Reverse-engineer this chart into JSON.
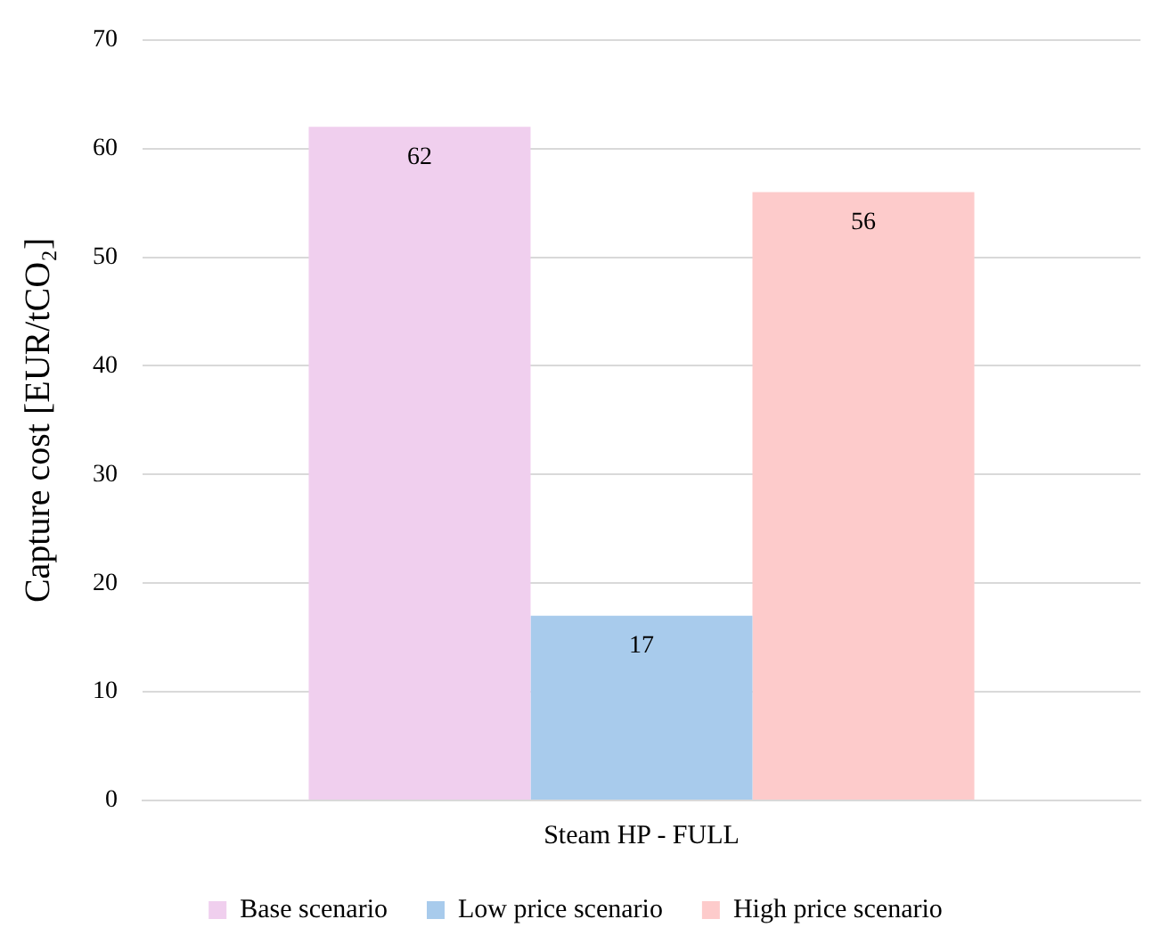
{
  "chart_data": {
    "type": "bar",
    "ylabel": "Capture cost [EUR/tCO₂]",
    "categories": [
      "Steam HP - FULL"
    ],
    "series": [
      {
        "name": "Base scenario",
        "color": "#f0cfee",
        "values": [
          62
        ]
      },
      {
        "name": "Low price scenario",
        "color": "#a8cbec",
        "values": [
          17
        ]
      },
      {
        "name": "High price scenario",
        "color": "#fdcbcb",
        "values": [
          56
        ]
      }
    ],
    "ylim": [
      0,
      70
    ],
    "yticks": [
      0,
      10,
      20,
      30,
      40,
      50,
      60,
      70
    ],
    "grid": "y",
    "legend": "bottom",
    "data_labels": true
  }
}
